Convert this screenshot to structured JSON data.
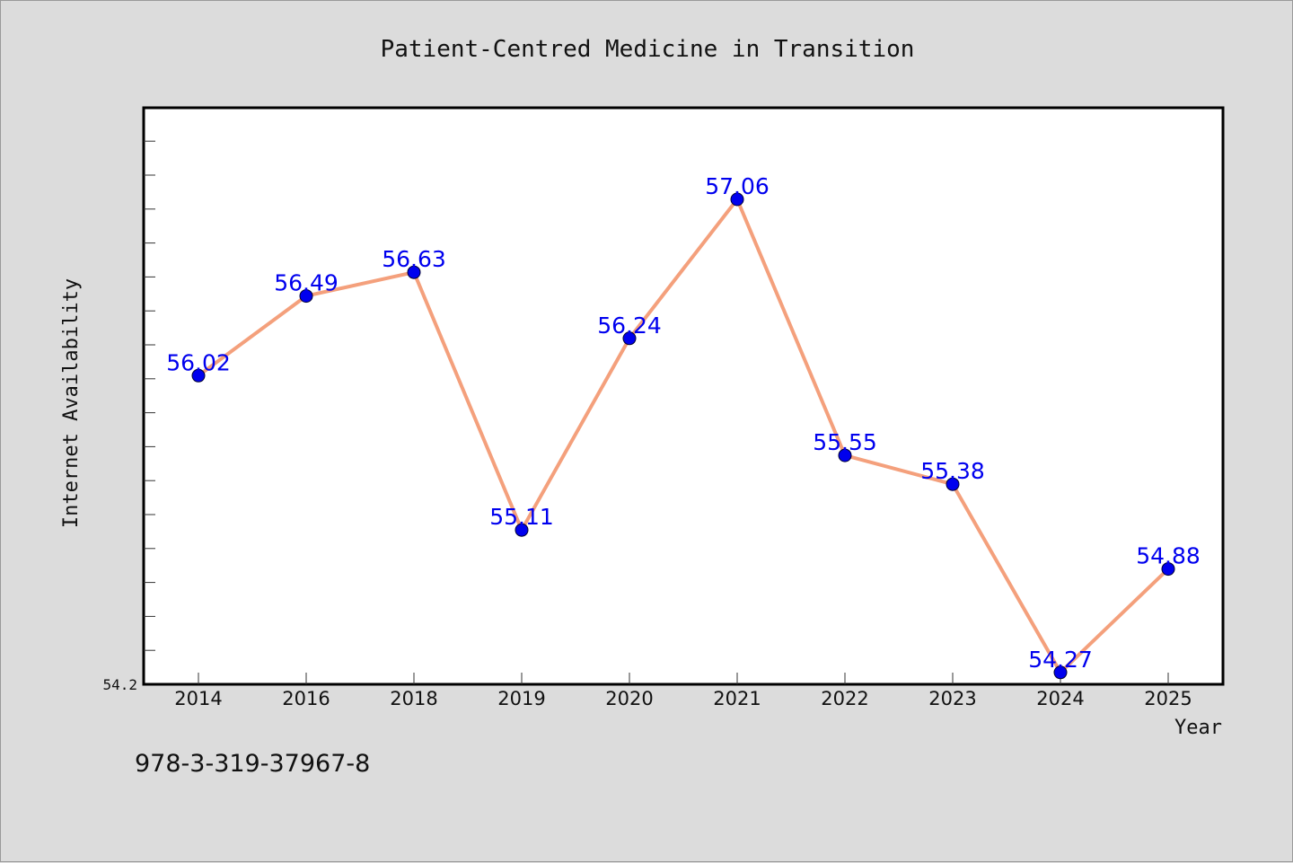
{
  "chart_data": {
    "type": "line",
    "title": "Patient-Centred Medicine in Transition",
    "xlabel": "Year",
    "ylabel": "Internet Availability",
    "categories": [
      "2014",
      "2016",
      "2018",
      "2019",
      "2020",
      "2021",
      "2022",
      "2023",
      "2024",
      "2025"
    ],
    "series": [
      {
        "values": [
          56.02,
          56.49,
          56.63,
          55.11,
          56.24,
          57.06,
          55.55,
          55.38,
          54.27,
          54.88
        ]
      }
    ],
    "data_labels": [
      "56.02",
      "56.49",
      "56.63",
      "55.11",
      "56.24",
      "57.06",
      "55.55",
      "55.38",
      "54.27",
      "54.88"
    ],
    "y_tick_labels": [
      "54.2"
    ],
    "ylim": [
      54.2,
      57.6
    ],
    "grid": false,
    "colors": {
      "line": "#f4a07c",
      "marker": "#0000ee",
      "label": "#0000ee",
      "frame": "#000000",
      "plot_bg": "#ffffff",
      "page_bg": "#dcdcdc"
    }
  },
  "footer": {
    "isbn": "978-3-319-37967-8"
  }
}
